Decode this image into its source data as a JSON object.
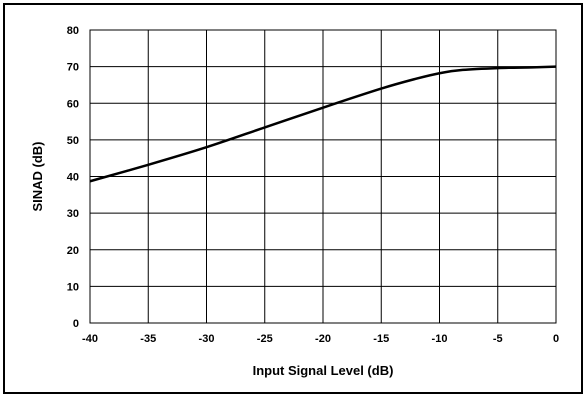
{
  "chart_data": {
    "type": "line",
    "title": "",
    "xlabel": "Input Signal Level (dB)",
    "ylabel": "SINAD (dB)",
    "xlim": [
      -40,
      0
    ],
    "ylim": [
      0,
      80
    ],
    "xticks": [
      -40,
      -35,
      -30,
      -25,
      -20,
      -15,
      -10,
      -5,
      0
    ],
    "yticks": [
      0,
      10,
      20,
      30,
      40,
      50,
      60,
      70,
      80
    ],
    "grid": true,
    "legend": "none",
    "series": [
      {
        "color": "#000000",
        "x": [
          -40,
          -35,
          -30,
          -25,
          -20,
          -15,
          -12,
          -10,
          -8,
          -5,
          -2,
          0
        ],
        "y": [
          38.7,
          43.2,
          48.0,
          53.4,
          58.8,
          64.0,
          66.7,
          68.2,
          69.1,
          69.6,
          69.8,
          70.0
        ]
      }
    ]
  }
}
